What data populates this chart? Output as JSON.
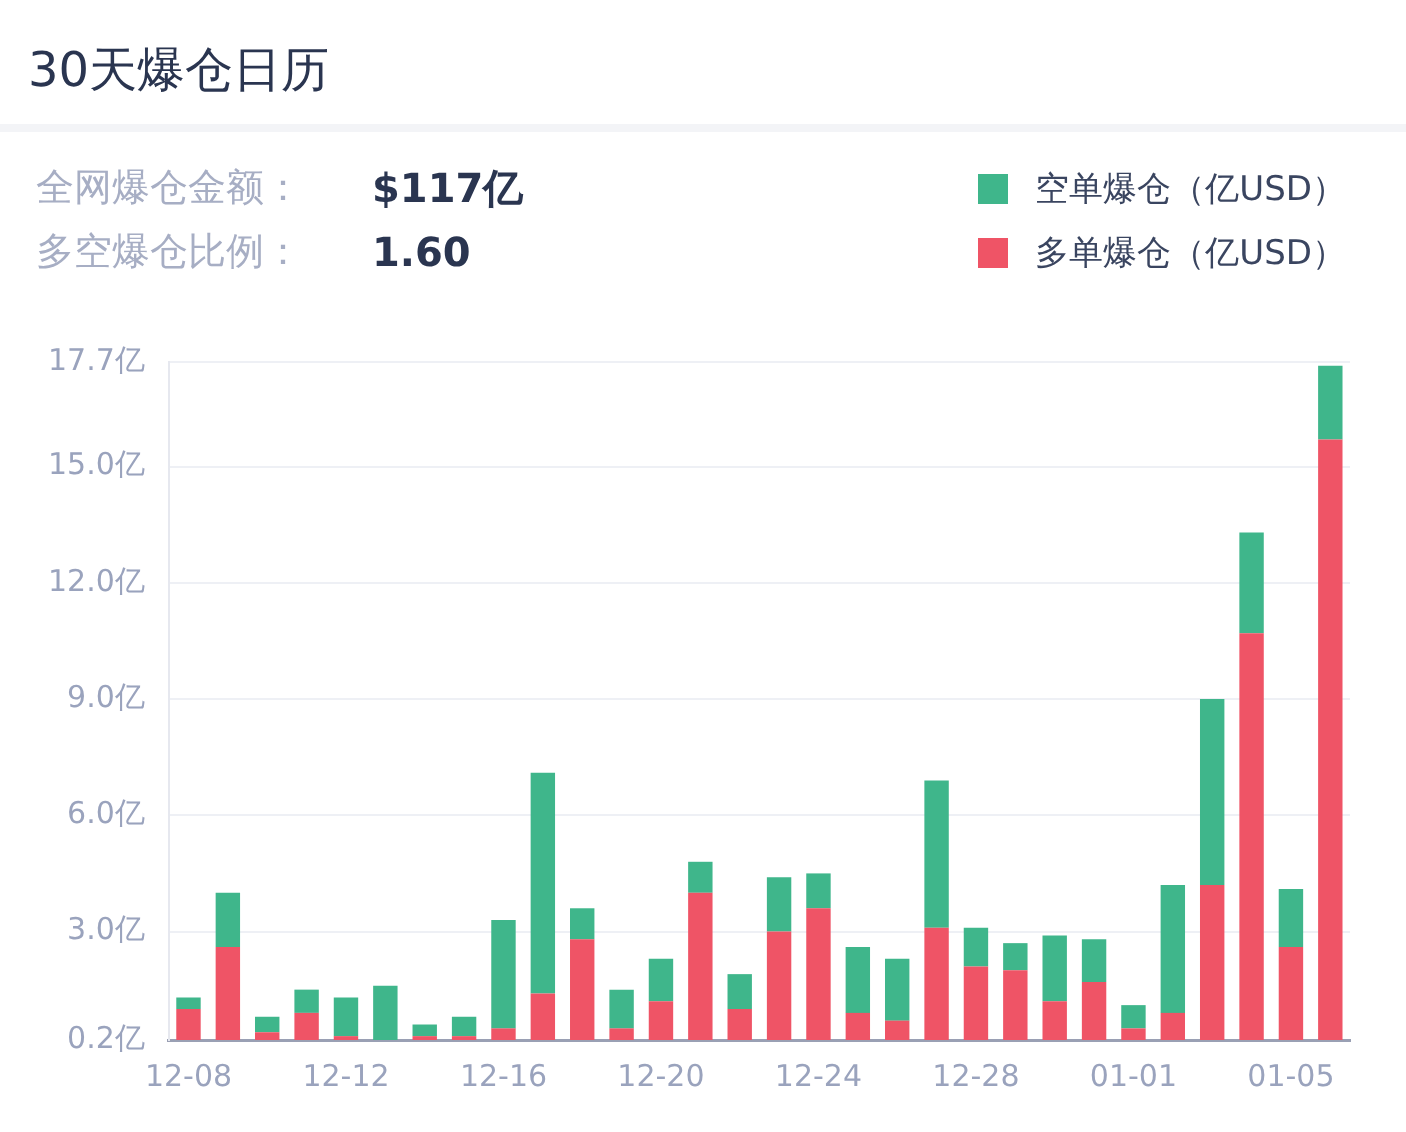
{
  "chart_data": {
    "type": "bar",
    "title": "30天爆仓日历",
    "annotations": [
      "全网爆仓金额：",
      "$117亿",
      "多空爆仓比例：",
      "1.60"
    ],
    "categories": [
      "12-08",
      null,
      null,
      null,
      "12-12",
      null,
      null,
      null,
      "12-16",
      null,
      null,
      null,
      "12-20",
      null,
      null,
      null,
      "12-24",
      null,
      null,
      null,
      "12-28",
      null,
      null,
      null,
      "01-01",
      null,
      null,
      null,
      "01-05",
      null
    ],
    "stacked": true,
    "series": [
      {
        "name": "多单爆仓（亿USD）",
        "color": "#ef5466",
        "values": [
          1.0,
          2.6,
          0.4,
          0.9,
          0.3,
          0.2,
          0.3,
          0.3,
          0.5,
          1.4,
          2.8,
          0.5,
          1.2,
          4.0,
          1.0,
          3.0,
          3.6,
          0.9,
          0.7,
          3.1,
          2.1,
          2.0,
          1.2,
          1.7,
          0.5,
          0.9,
          4.2,
          10.7,
          2.6,
          15.7
        ]
      },
      {
        "name": "空单爆仓（亿USD）",
        "color": "#3fb68b",
        "values": [
          0.3,
          1.4,
          0.4,
          0.6,
          1.0,
          1.4,
          0.3,
          0.5,
          2.8,
          5.7,
          0.8,
          1.0,
          1.1,
          0.8,
          0.9,
          1.4,
          0.9,
          1.7,
          1.6,
          3.8,
          1.0,
          0.7,
          1.7,
          1.1,
          0.6,
          3.3,
          4.8,
          2.6,
          1.5,
          1.9
        ]
      }
    ],
    "ylim": [
      0.2,
      17.7
    ],
    "yticks": [
      {
        "value": 0.2,
        "label": "0.2亿"
      },
      {
        "value": 3,
        "label": "3.0亿"
      },
      {
        "value": 6,
        "label": "6.0亿"
      },
      {
        "value": 9,
        "label": "9.0亿"
      },
      {
        "value": 12,
        "label": "12.0亿"
      },
      {
        "value": 15,
        "label": "15.0亿"
      },
      {
        "value": 17.7,
        "label": "17.7亿"
      }
    ],
    "grid": "y",
    "legend": "top right"
  }
}
